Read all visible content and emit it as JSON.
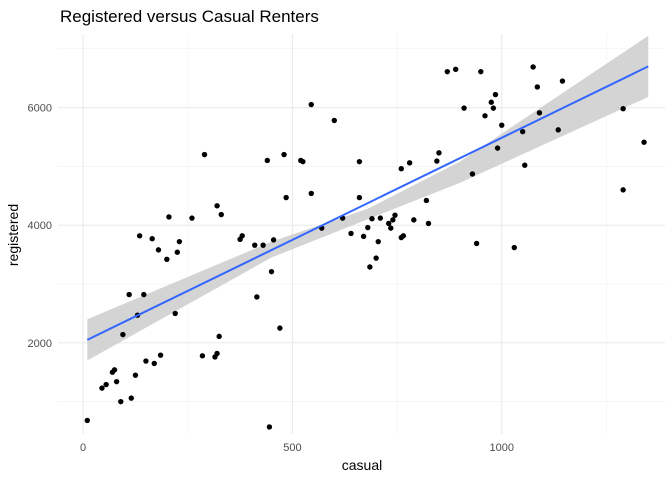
{
  "chart_data": {
    "type": "scatter",
    "title": "Registered versus Casual Renters",
    "xlabel": "casual",
    "ylabel": "registered",
    "xlim": [
      -60,
      1390
    ],
    "ylim": [
      450,
      7250
    ],
    "x_ticks": [
      0,
      500,
      1000
    ],
    "x_tick_labels": [
      "0",
      "500",
      "1000"
    ],
    "y_ticks": [
      2000,
      4000,
      6000
    ],
    "y_tick_labels": [
      "2000",
      "4000",
      "6000"
    ],
    "grid": true,
    "legend": "none",
    "point_color": "#000000",
    "trend": {
      "method": "linear",
      "color": "#3366FF",
      "ribbon_color": "#CCCCCC",
      "x_range": [
        10,
        1350
      ],
      "line": [
        [
          10,
          2050
        ],
        [
          1350,
          6700
        ]
      ],
      "band_lower": [
        [
          10,
          1700
        ],
        [
          450,
          3450
        ],
        [
          680,
          4100
        ],
        [
          900,
          4720
        ],
        [
          1350,
          6180
        ]
      ],
      "band_upper": [
        [
          10,
          2400
        ],
        [
          450,
          3720
        ],
        [
          680,
          4280
        ],
        [
          900,
          5080
        ],
        [
          1350,
          7220
        ]
      ]
    },
    "x": [
      10,
      45,
      55,
      70,
      75,
      80,
      90,
      95,
      110,
      115,
      125,
      130,
      135,
      145,
      150,
      165,
      170,
      180,
      185,
      200,
      205,
      220,
      225,
      230,
      260,
      285,
      290,
      315,
      320,
      320,
      325,
      330,
      375,
      380,
      410,
      415,
      430,
      440,
      445,
      450,
      455,
      470,
      480,
      485,
      520,
      525,
      545,
      545,
      570,
      600,
      620,
      640,
      660,
      660,
      670,
      680,
      685,
      690,
      700,
      705,
      710,
      730,
      735,
      740,
      745,
      760,
      760,
      765,
      780,
      790,
      820,
      825,
      845,
      850,
      870,
      890,
      910,
      930,
      940,
      950,
      960,
      975,
      980,
      985,
      990,
      1000,
      1030,
      1050,
      1055,
      1075,
      1085,
      1090,
      1135,
      1145,
      1290,
      1290,
      1340
    ],
    "y": [
      680,
      1230,
      1290,
      1500,
      1540,
      1340,
      1000,
      2140,
      2820,
      1060,
      1450,
      2470,
      3820,
      2820,
      1690,
      3770,
      1650,
      3580,
      1790,
      3420,
      4140,
      2500,
      3540,
      3720,
      4120,
      1780,
      5200,
      1760,
      4330,
      1820,
      2110,
      4180,
      3760,
      3820,
      3660,
      2780,
      3660,
      5100,
      570,
      3210,
      3750,
      2250,
      5200,
      4470,
      5100,
      5080,
      4540,
      6050,
      3950,
      5780,
      4120,
      3860,
      4470,
      5080,
      3810,
      3960,
      3290,
      4110,
      3440,
      3720,
      4120,
      4030,
      3950,
      4090,
      4170,
      3790,
      4960,
      3820,
      5060,
      4090,
      4420,
      4030,
      5090,
      5230,
      6610,
      6650,
      5990,
      4870,
      3690,
      6610,
      5860,
      6090,
      5990,
      6220,
      5310,
      5700,
      3620,
      5590,
      5020,
      6690,
      6350,
      5910,
      5620,
      6450,
      5980,
      4600,
      5410
    ]
  }
}
